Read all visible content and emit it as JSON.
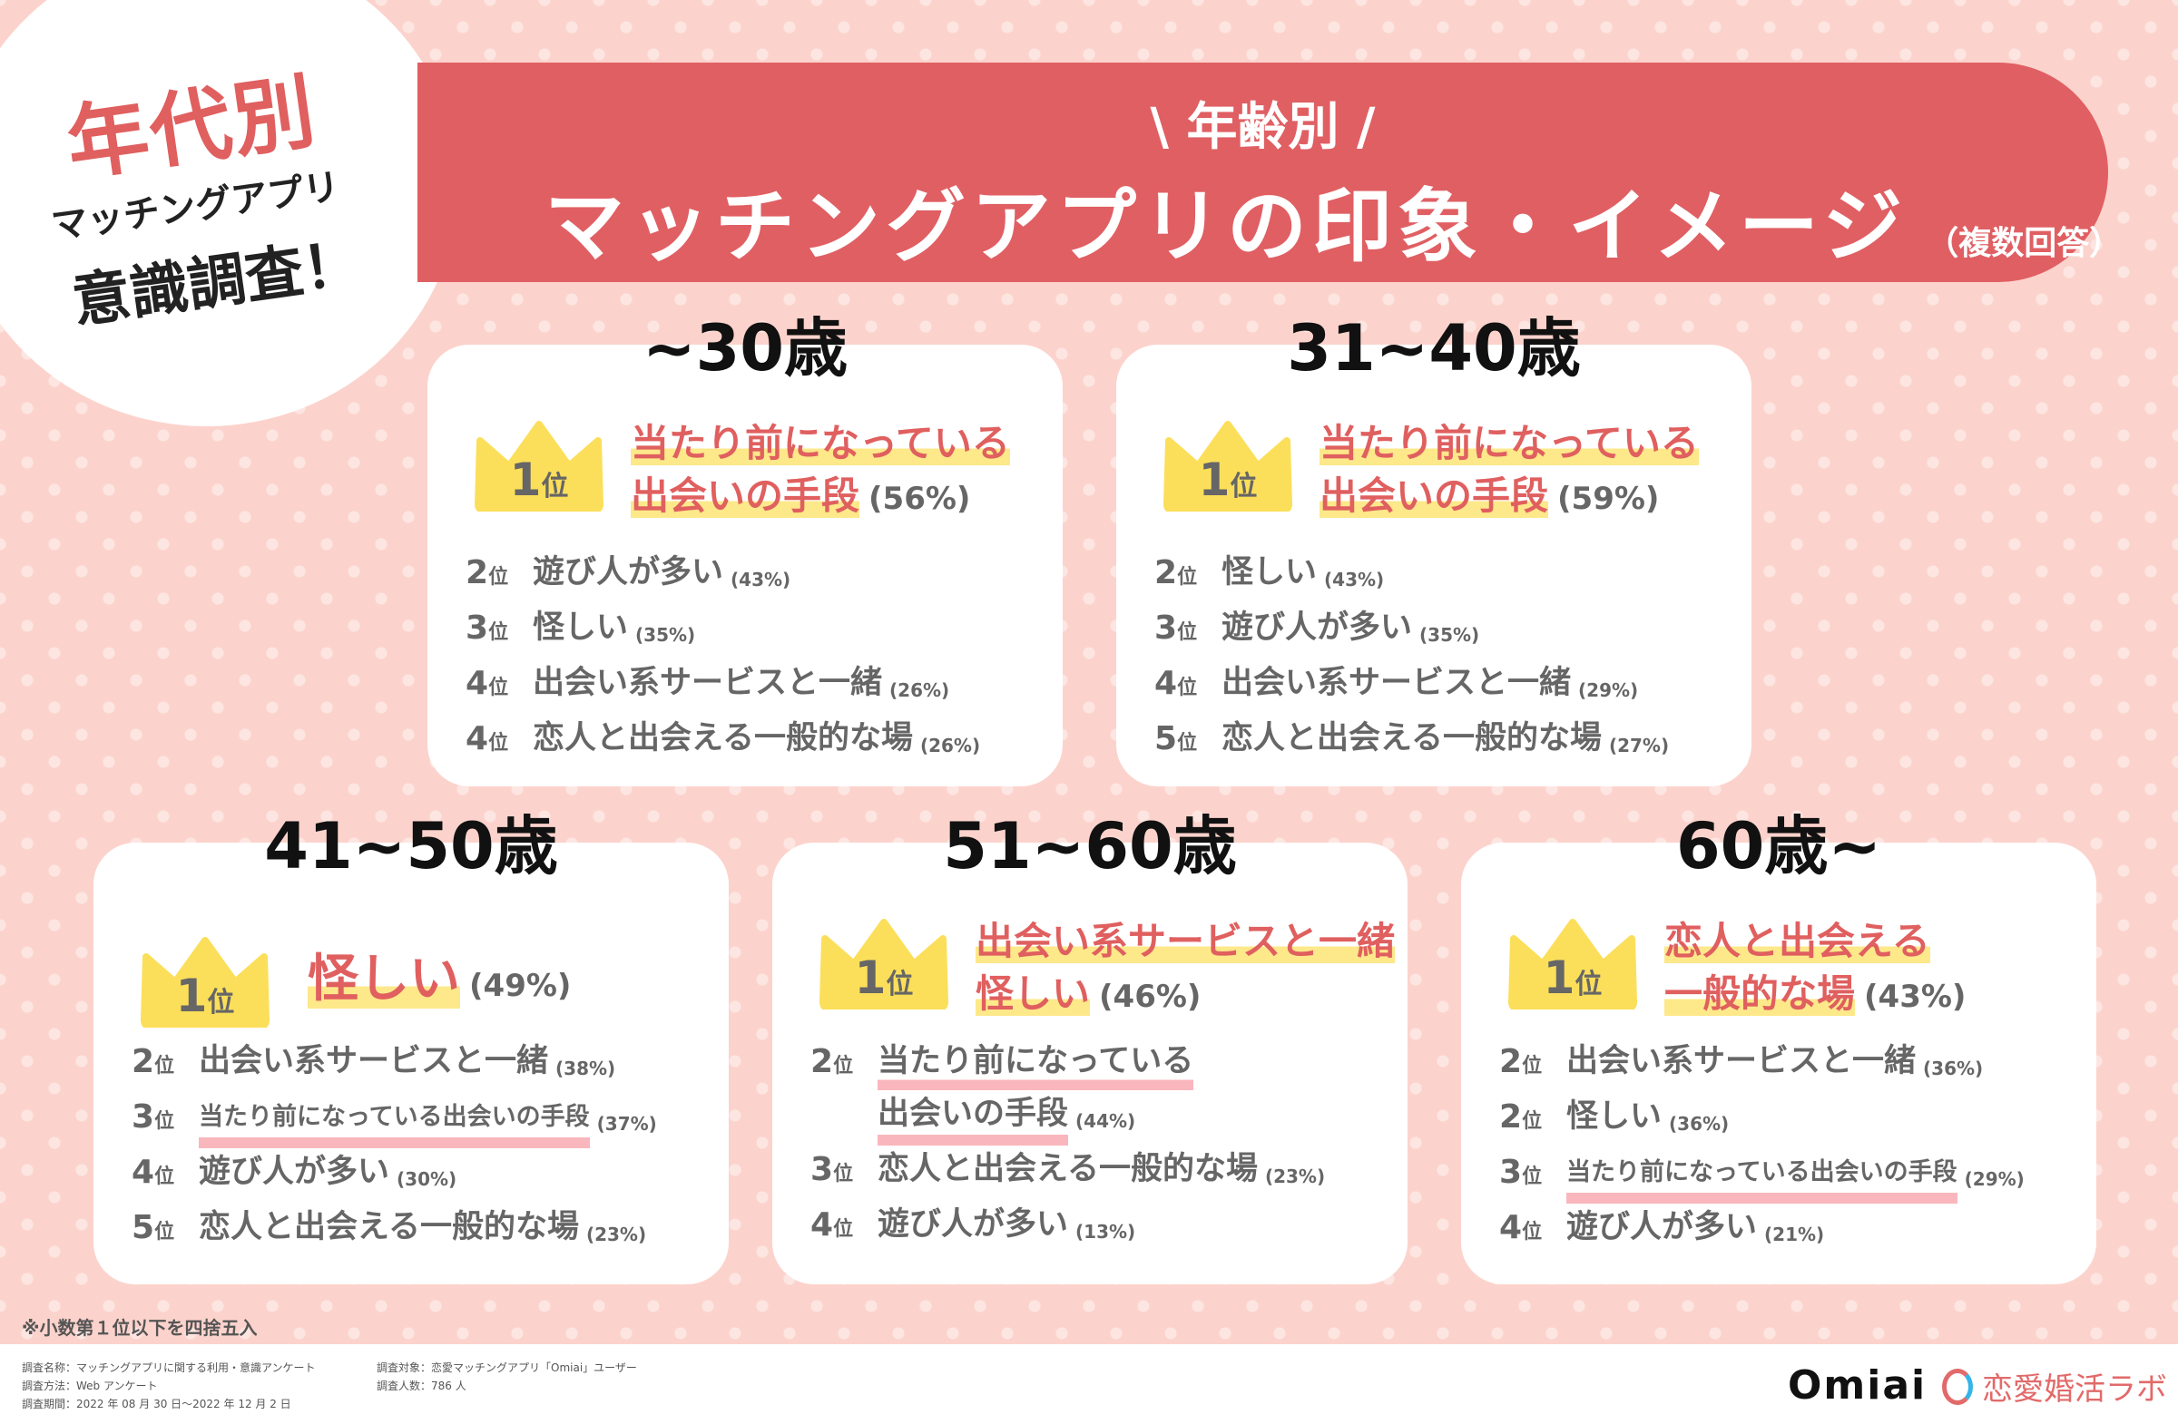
{
  "badge": {
    "line1": "年代別",
    "line2": "マッチングアプリ",
    "line3": "意識調査！"
  },
  "banner": {
    "sub": "\\ 年齢別 /",
    "title": "マッチングアプリの印象・イメージ",
    "note": "（複数回答）"
  },
  "colors": {
    "accent": "#e05f63",
    "crown": "#fbdf5a",
    "text": "#666666"
  },
  "rank_suffix": "位",
  "cards": [
    {
      "age": "~30歳",
      "first": {
        "rank": "1",
        "lines": [
          "当たり前になっている",
          "出会いの手段"
        ],
        "pct": "(56%)"
      },
      "others": [
        {
          "rank": "2",
          "label": "遊び人が多い",
          "pct": "(43%)"
        },
        {
          "rank": "3",
          "label": "怪しい",
          "pct": "(35%)"
        },
        {
          "rank": "4",
          "label": "出会い系サービスと一緒",
          "pct": "(26%)"
        },
        {
          "rank": "4",
          "label": "恋人と出会える一般的な場",
          "pct": "(26%)"
        }
      ]
    },
    {
      "age": "31~40歳",
      "first": {
        "rank": "1",
        "lines": [
          "当たり前になっている",
          "出会いの手段"
        ],
        "pct": "(59%)"
      },
      "others": [
        {
          "rank": "2",
          "label": "怪しい",
          "pct": "(43%)"
        },
        {
          "rank": "3",
          "label": "遊び人が多い",
          "pct": "(35%)"
        },
        {
          "rank": "4",
          "label": "出会い系サービスと一緒",
          "pct": "(29%)"
        },
        {
          "rank": "5",
          "label": "恋人と出会える一般的な場",
          "pct": "(27%)"
        }
      ]
    },
    {
      "age": "41~50歳",
      "first": {
        "rank": "1",
        "lines": [
          "怪しい"
        ],
        "pct": "(49%)"
      },
      "others": [
        {
          "rank": "2",
          "label": "出会い系サービスと一緒",
          "pct": "(38%)"
        },
        {
          "rank": "3",
          "label": "当たり前になっている出会いの手段",
          "pct": "(37%)",
          "small": true
        },
        {
          "rank": "4",
          "label": "遊び人が多い",
          "pct": "(30%)"
        },
        {
          "rank": "5",
          "label": "恋人と出会える一般的な場",
          "pct": "(23%)"
        }
      ]
    },
    {
      "age": "51~60歳",
      "first": {
        "rank": "1",
        "lines": [
          "出会い系サービスと一緒",
          "怪しい"
        ],
        "pct": "(46%)"
      },
      "others": [
        {
          "rank": "2",
          "label": "当たり前になっている",
          "label2": "出会いの手段",
          "pct": "(44%)"
        },
        {
          "rank": "3",
          "label": "恋人と出会える一般的な場",
          "pct": "(23%)"
        },
        {
          "rank": "4",
          "label": "遊び人が多い",
          "pct": "(13%)"
        }
      ]
    },
    {
      "age": "60歳~",
      "first": {
        "rank": "1",
        "lines": [
          "恋人と出会える",
          "一般的な場"
        ],
        "pct": "(43%)"
      },
      "others": [
        {
          "rank": "2",
          "label": "出会い系サービスと一緒",
          "pct": "(36%)"
        },
        {
          "rank": "2",
          "label": "怪しい",
          "pct": "(36%)"
        },
        {
          "rank": "3",
          "label": "当たり前になっている出会いの手段",
          "pct": "(29%)",
          "small": true
        },
        {
          "rank": "4",
          "label": "遊び人が多い",
          "pct": "(21%)"
        }
      ]
    }
  ],
  "footnote": "※小数第１位以下を四捨五入",
  "footer": {
    "survey_name": "調査名称：マッチングアプリに関する利用・意識アンケート",
    "method": "調査方法：Web アンケート",
    "period": "調査期間：2022 年 08 月 30 日～2022 年 12 月 2 日",
    "target": "調査対象：恋愛マッチングアプリ「Omiai」ユーザー",
    "respondents": "調査人数：786 人",
    "logo1": "Omiai",
    "logo2": "恋愛婚活ラボ"
  }
}
